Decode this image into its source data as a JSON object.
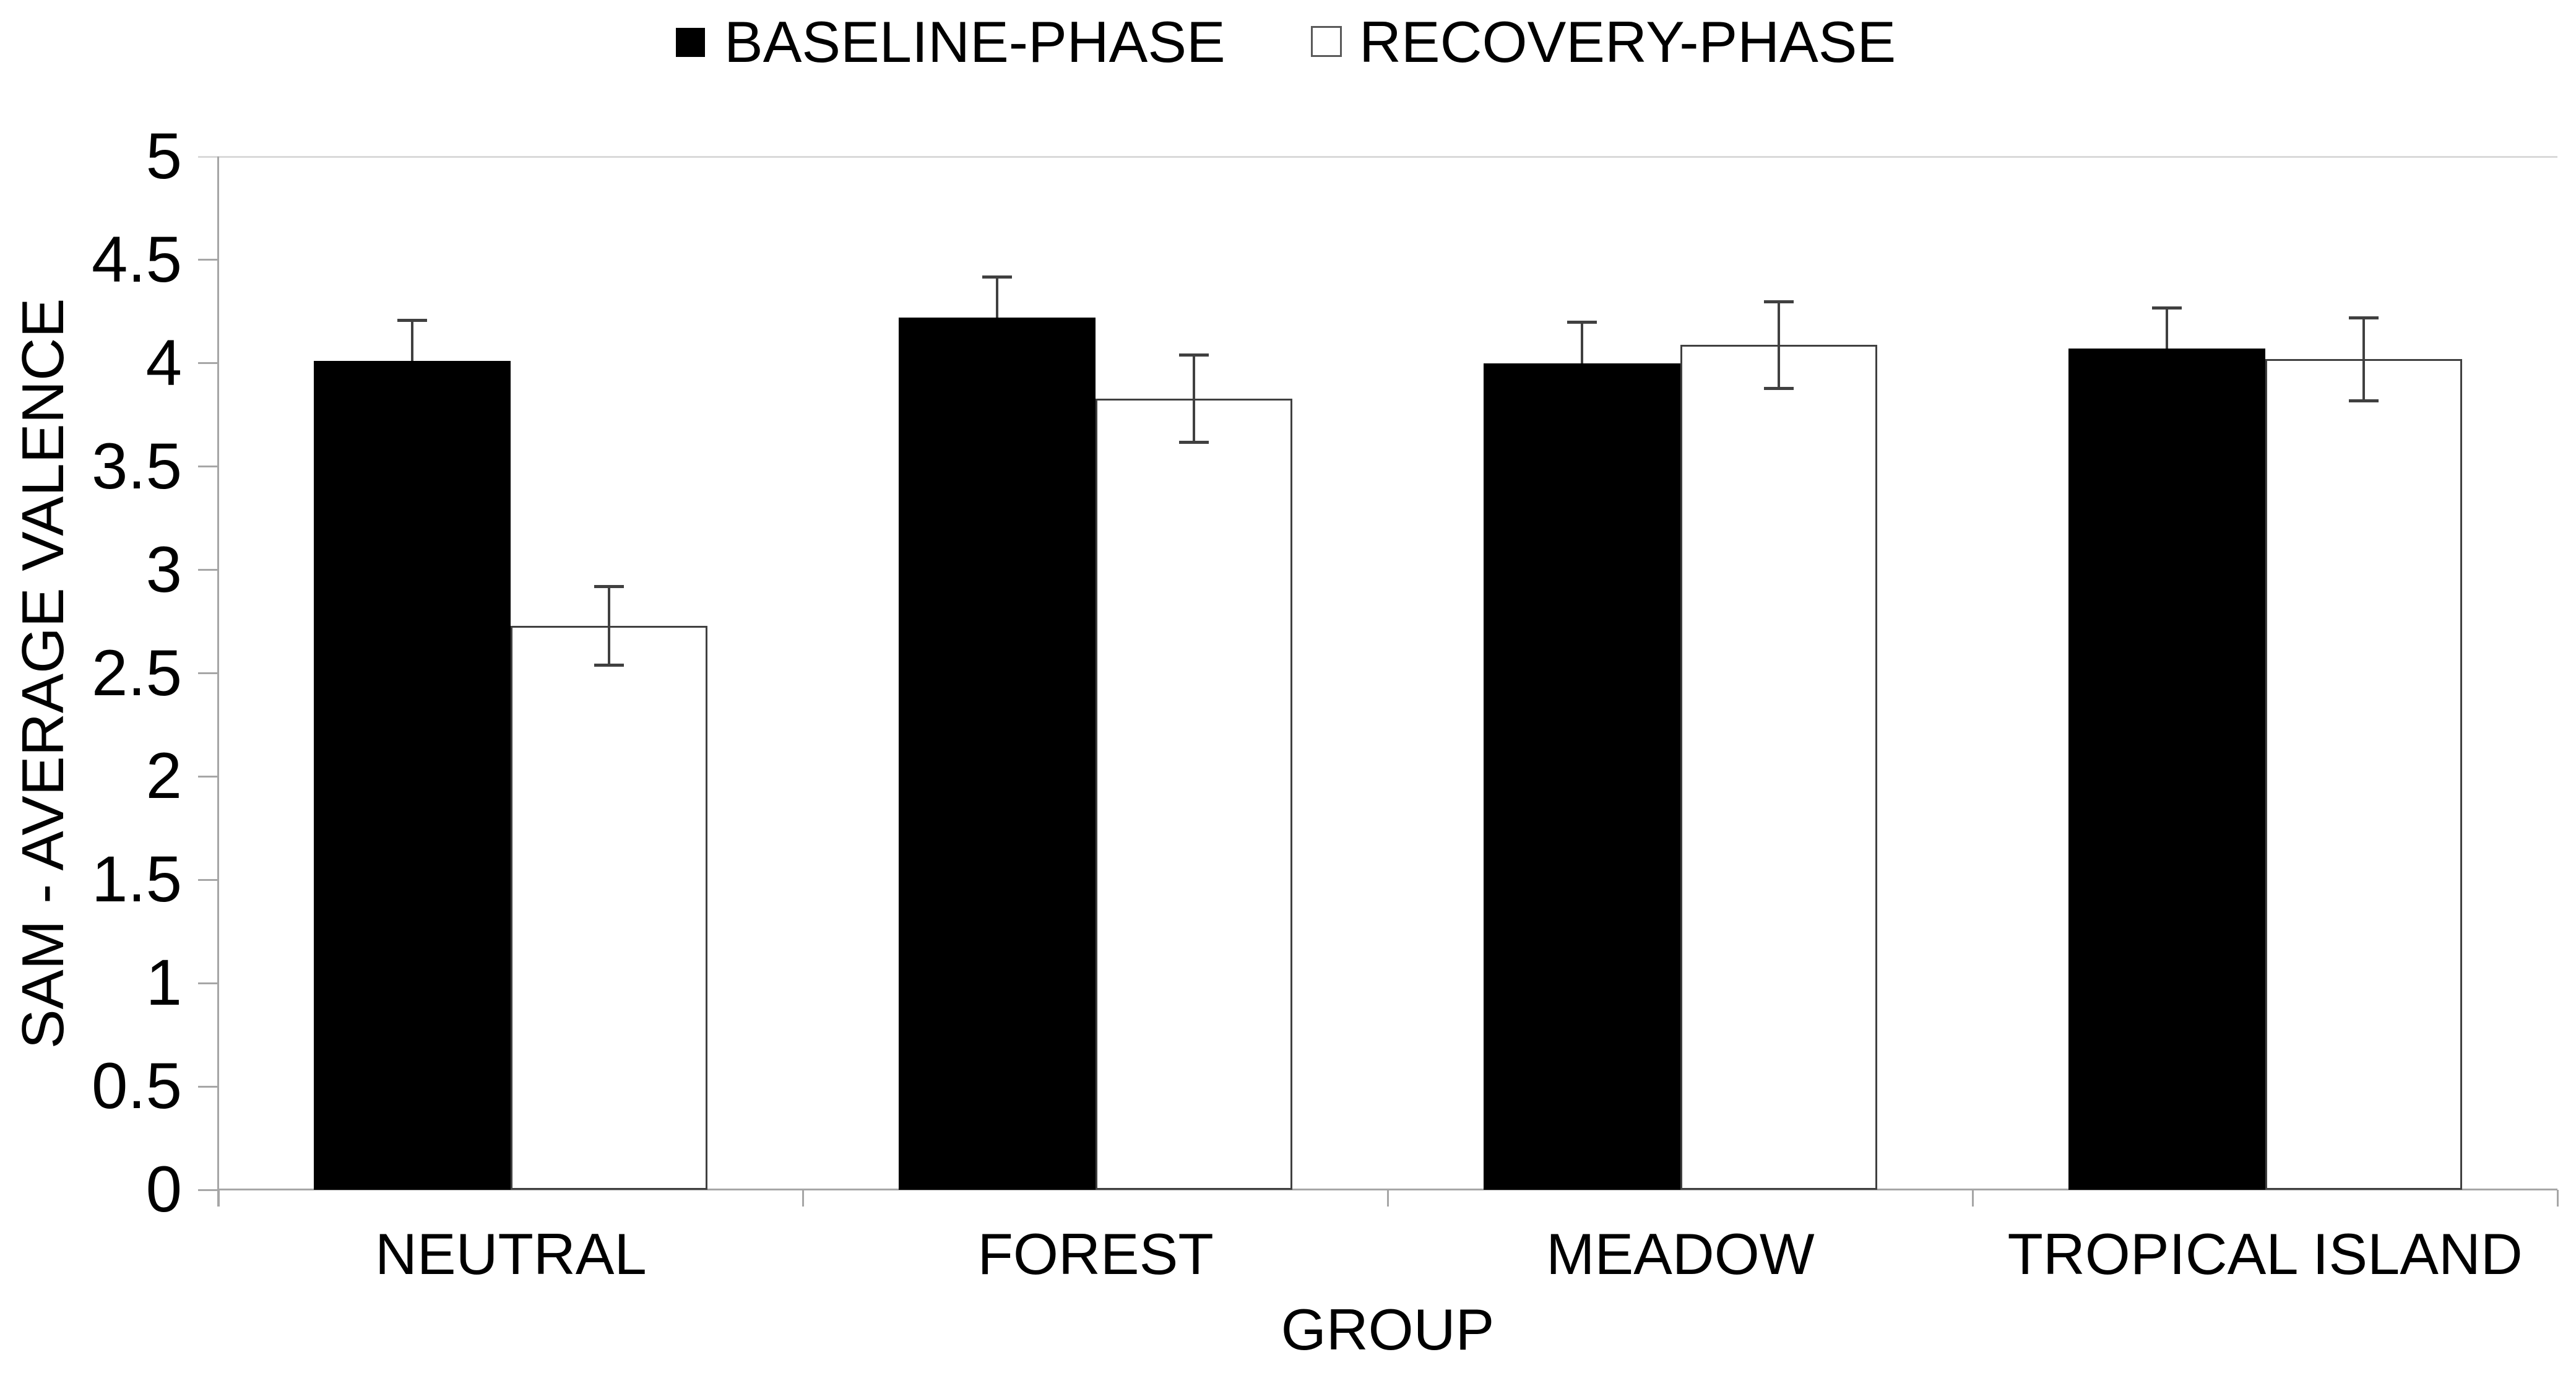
{
  "figure": {
    "kind": "statistical bar chart with error bars",
    "background": "#ffffff"
  },
  "legend": {
    "position": "top-center",
    "items": [
      {
        "label": "BASELINE-PHASE",
        "swatch_fill": "#000000",
        "swatch_border": "#000000"
      },
      {
        "label": "RECOVERY-PHASE",
        "swatch_fill": "#ffffff",
        "swatch_border": "#595959"
      }
    ]
  },
  "chart_data": {
    "type": "bar",
    "title": "",
    "categories": [
      "NEUTRAL",
      "FOREST",
      "MEADOW",
      "TROPICAL ISLAND"
    ],
    "series": [
      {
        "name": "BASELINE-PHASE",
        "fill": "#000000",
        "border": "#000000",
        "whisker": "upper",
        "values": [
          4.01,
          4.22,
          4.0,
          4.07
        ],
        "errors": [
          0.2,
          0.2,
          0.2,
          0.2
        ]
      },
      {
        "name": "RECOVERY-PHASE",
        "fill": "#ffffff",
        "border": "#404040",
        "whisker": "both",
        "values": [
          2.73,
          3.83,
          4.09,
          4.02
        ],
        "errors": [
          0.19,
          0.21,
          0.21,
          0.2
        ]
      }
    ],
    "xlabel": "GROUP",
    "ylabel": "SAM - AVERAGE VALENCE",
    "ylim": [
      0,
      5
    ],
    "ytick_step": 0.5,
    "yticks": [
      0,
      0.5,
      1,
      1.5,
      2,
      2.5,
      3,
      3.5,
      4,
      4.5,
      5
    ],
    "grid": "top-gridline-only",
    "error_bars": true
  },
  "colors": {
    "axis": "#a6a6a6",
    "gridline": "#d9d9d9",
    "error_bar": "#404040",
    "text": "#000000"
  }
}
